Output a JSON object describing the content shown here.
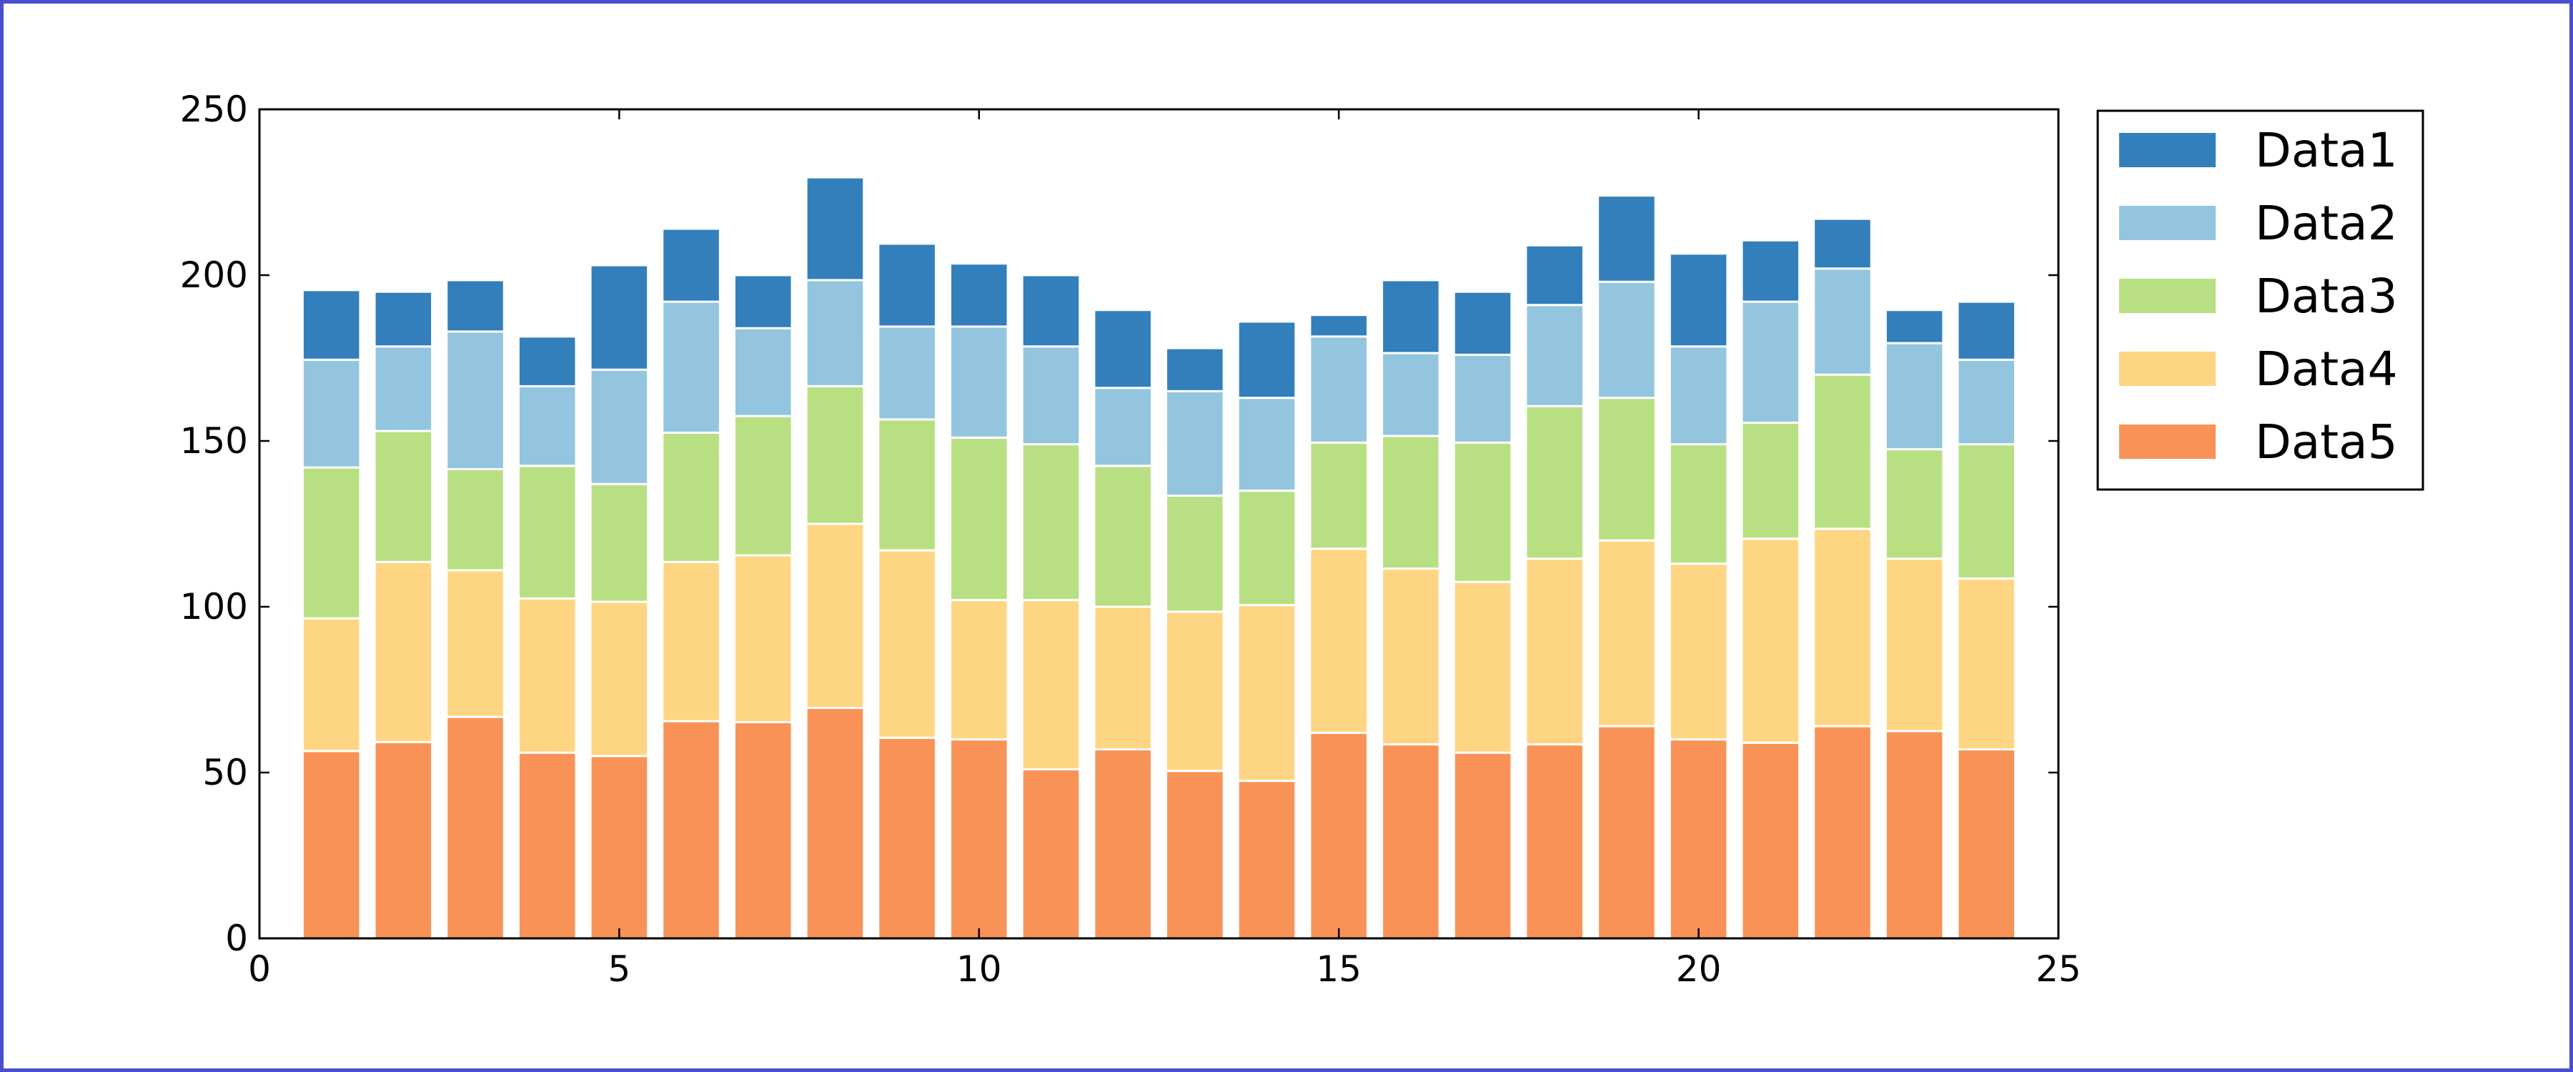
{
  "chart_data": {
    "type": "bar",
    "stacked": true,
    "title": "",
    "xlabel": "",
    "ylabel": "",
    "xlim": [
      0,
      25
    ],
    "ylim": [
      0,
      250
    ],
    "x_ticks": [
      "0",
      "5",
      "10",
      "15",
      "20",
      "25"
    ],
    "y_ticks": [
      "0",
      "50",
      "100",
      "150",
      "200",
      "250"
    ],
    "grid": false,
    "legend_position": "outside-right-top",
    "x": [
      1,
      2,
      3,
      4,
      5,
      6,
      7,
      8,
      9,
      10,
      11,
      12,
      13,
      14,
      15,
      16,
      17,
      18,
      19,
      20,
      21,
      22,
      23,
      24
    ],
    "series": [
      {
        "name": "Data5",
        "color": "#f99257",
        "values": [
          56.5,
          59.2,
          66.8,
          56.0,
          55.0,
          65.5,
          65.2,
          69.5,
          60.5,
          60.0,
          51.0,
          57.0,
          50.5,
          47.5,
          62.0,
          58.5,
          56.0,
          58.5,
          64.0,
          60.0,
          59.0,
          64.0,
          62.5,
          57.0
        ]
      },
      {
        "name": "Data4",
        "color": "#fed582",
        "values": [
          40.0,
          54.3,
          44.2,
          46.5,
          46.5,
          48.0,
          50.3,
          55.5,
          56.5,
          42.0,
          51.0,
          43.0,
          48.0,
          53.0,
          55.5,
          53.0,
          51.5,
          56.0,
          56.0,
          53.0,
          61.5,
          59.5,
          52.0,
          51.5
        ]
      },
      {
        "name": "Data3",
        "color": "#b8e083",
        "values": [
          45.5,
          39.5,
          30.5,
          40.0,
          35.5,
          39.0,
          42.0,
          41.5,
          39.5,
          49.0,
          47.0,
          42.5,
          35.0,
          34.5,
          32.0,
          40.0,
          42.0,
          46.0,
          43.0,
          36.0,
          35.0,
          46.5,
          33.0,
          40.5
        ]
      },
      {
        "name": "Data2",
        "color": "#93c5de",
        "values": [
          32.5,
          25.5,
          41.5,
          24.0,
          34.5,
          39.5,
          26.5,
          32.0,
          28.0,
          33.5,
          29.5,
          23.5,
          31.5,
          28.0,
          32.0,
          25.0,
          26.5,
          30.5,
          35.0,
          29.5,
          36.5,
          32.0,
          32.0,
          25.5
        ]
      },
      {
        "name": "Data1",
        "color": "#327fbb",
        "values": [
          21.0,
          16.5,
          15.5,
          15.0,
          31.5,
          22.0,
          16.0,
          31.0,
          25.0,
          19.0,
          21.5,
          23.5,
          13.0,
          23.0,
          6.5,
          22.0,
          19.0,
          18.0,
          26.0,
          28.0,
          18.5,
          15.0,
          10.0,
          17.5
        ]
      }
    ],
    "legend_order": [
      "Data1",
      "Data2",
      "Data3",
      "Data4",
      "Data5"
    ]
  }
}
